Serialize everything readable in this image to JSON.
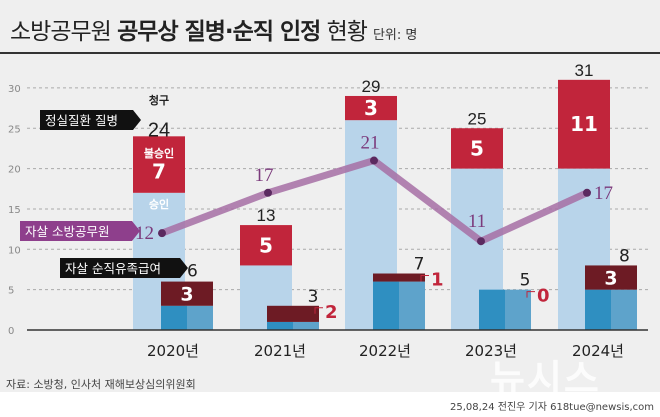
{
  "title": {
    "light": "소방공무원",
    "bold": "공무상 질병·순직 인정",
    "tail": "현황",
    "unit": "단위: 명"
  },
  "chart_data": {
    "type": "bar",
    "categories": [
      "2020년",
      "2021년",
      "2022년",
      "2023년",
      "2024년"
    ],
    "ylim": [
      0,
      30
    ],
    "yticks": [
      0,
      5,
      10,
      15,
      20,
      25,
      30
    ],
    "grid": true,
    "series": [
      {
        "name": "정실질환 질병",
        "claims": [
          24,
          13,
          29,
          25,
          31
        ],
        "approved": [
          17,
          8,
          26,
          20,
          20
        ],
        "rejected": [
          7,
          5,
          3,
          5,
          11
        ]
      },
      {
        "name": "자살 순직유족급여",
        "claims": [
          6,
          3,
          7,
          5,
          8
        ],
        "approved": [
          3,
          1,
          6,
          5,
          5
        ],
        "rejected": [
          3,
          2,
          1,
          0,
          3
        ]
      },
      {
        "name": "자살 소방공무원",
        "type": "line",
        "values": [
          12,
          17,
          21,
          11,
          17
        ]
      }
    ],
    "labels": {
      "claims": "청구",
      "rejected": "불승인",
      "approved": "승인"
    },
    "colors": {
      "approved": "#b8d4ea",
      "rejected": "#c1253b",
      "sub_approved": "#2f8fc1",
      "sub_approved2": "#5ea3cb",
      "sub_rejected": "#6d1b24",
      "line": "#a66fa5",
      "line_dot": "#5b2a60",
      "line_text": "#7b3a7c"
    }
  },
  "source": "자료: 소방청, 인사처 재해보상심의위원회",
  "credit": "25,08,24 전진우 기자 618tue@newsis,com",
  "logo": "뉴시스"
}
